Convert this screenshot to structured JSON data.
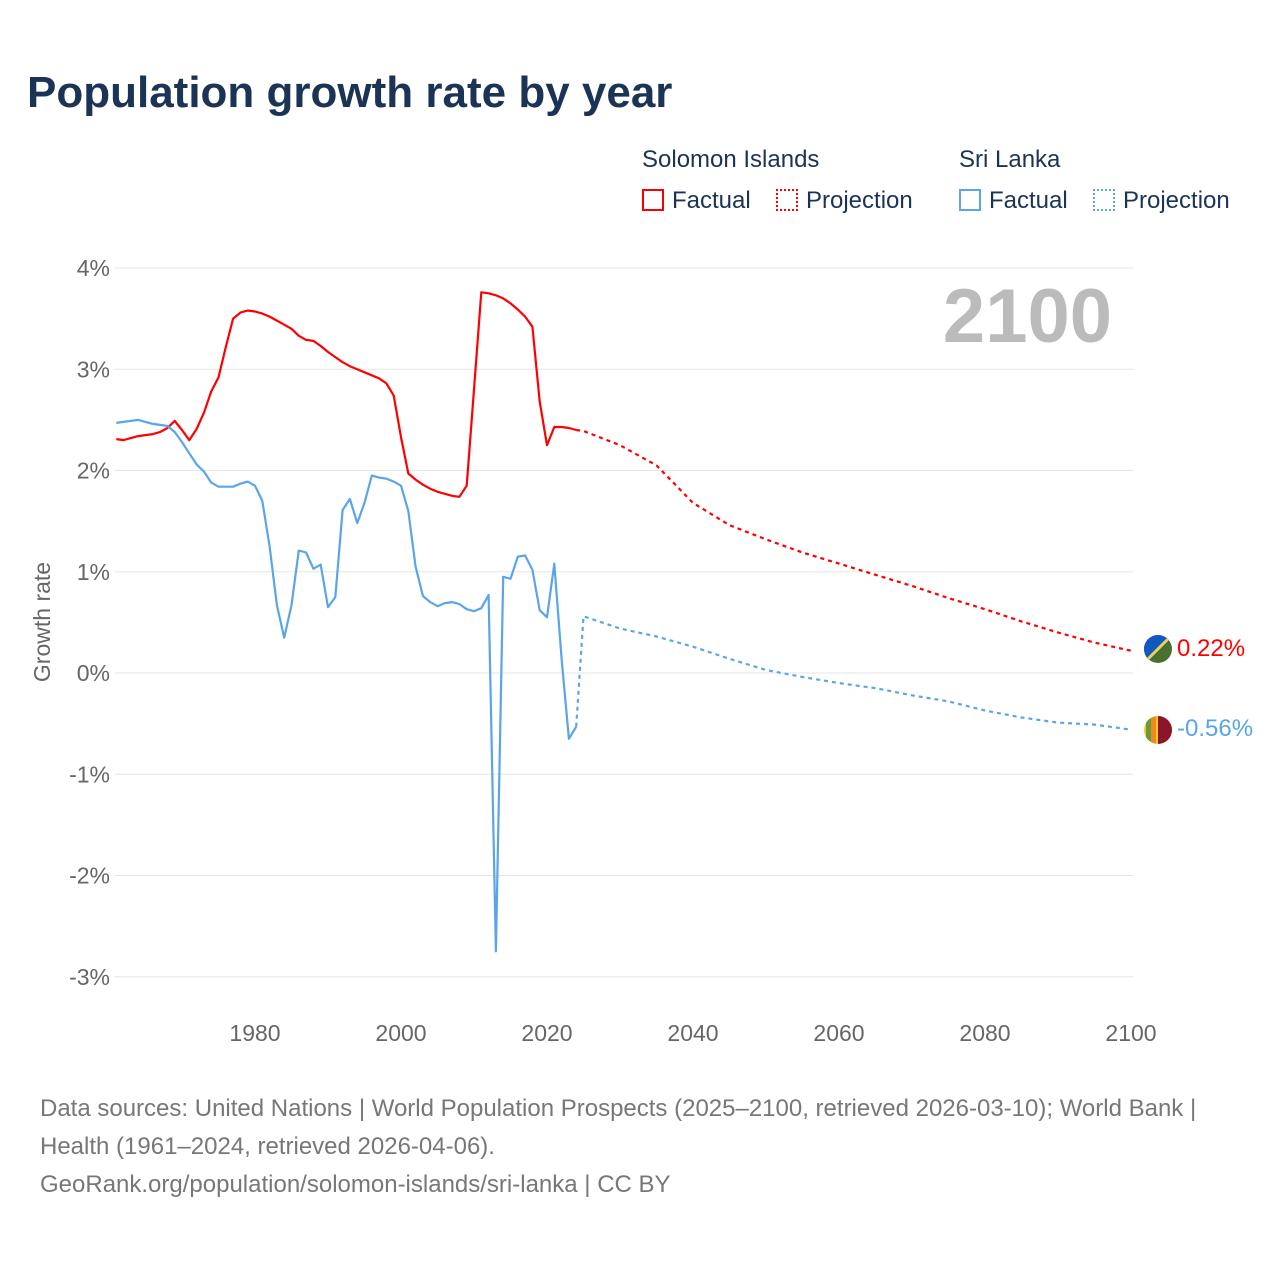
{
  "title": "Population growth rate by year",
  "legend": {
    "groups": [
      {
        "name": "Solomon Islands",
        "factual": "Factual",
        "projection": "Projection",
        "color": "#ff0000"
      },
      {
        "name": "Sri Lanka",
        "factual": "Factual",
        "projection": "Projection",
        "color": "#5aa5ea"
      }
    ]
  },
  "watermark_year": "2100",
  "end_labels": [
    "0.22%",
    "-0.56%"
  ],
  "source": {
    "line1": "Data sources: United Nations | World Population Prospects (2025–2100, retrieved 2026-03-10); World Bank | Health (1961–2024, retrieved 2026-04-06).",
    "line2": "GeoRank.org/population/solomon-islands/sri-lanka | CC BY"
  },
  "chart_data": {
    "type": "line",
    "title": "Population growth rate by year",
    "xlabel": "",
    "ylabel": "Growth rate",
    "xlim": [
      1961,
      2100
    ],
    "ylim": [
      -3,
      4
    ],
    "xticks": [
      "1980",
      "2000",
      "2020",
      "2040",
      "2060",
      "2080",
      "2100"
    ],
    "yticks": [
      "4%",
      "3%",
      "2%",
      "1%",
      "0%",
      "-1%",
      "-2%",
      "-3%"
    ],
    "series": [
      {
        "name": "Solomon Islands Factual",
        "color": "#ff0000",
        "dashed": false,
        "start": 1961,
        "values": [
          2.31,
          2.3,
          2.32,
          2.34,
          2.35,
          2.36,
          2.38,
          2.42,
          2.49,
          2.4,
          2.3,
          2.41,
          2.57,
          2.78,
          2.92,
          3.22,
          3.5,
          3.56,
          3.58,
          3.57,
          3.55,
          3.52,
          3.48,
          3.44,
          3.4,
          3.33,
          3.29,
          3.28,
          3.23,
          3.17,
          3.12,
          3.07,
          3.03,
          3.0,
          2.97,
          2.94,
          2.91,
          2.86,
          2.74,
          2.33,
          1.97,
          1.91,
          1.86,
          1.82,
          1.79,
          1.77,
          1.75,
          1.74,
          1.85,
          2.8,
          3.76,
          3.75,
          3.73,
          3.7,
          3.65,
          3.59,
          3.52,
          3.42,
          2.68,
          2.25,
          2.43,
          2.43,
          2.42,
          2.4
        ]
      },
      {
        "name": "Solomon Islands Projection",
        "color": "#ff0000",
        "dashed": true,
        "x": [
          2024,
          2025,
          2030,
          2035,
          2040,
          2045,
          2050,
          2055,
          2060,
          2065,
          2070,
          2075,
          2080,
          2085,
          2090,
          2095,
          2100
        ],
        "values": [
          2.4,
          2.39,
          2.25,
          2.05,
          1.68,
          1.46,
          1.32,
          1.19,
          1.08,
          0.97,
          0.86,
          0.74,
          0.63,
          0.51,
          0.4,
          0.3,
          0.22
        ]
      },
      {
        "name": "Sri Lanka Factual",
        "color": "#5aa5ea",
        "dashed": false,
        "start": 1961,
        "values": [
          2.47,
          2.48,
          2.49,
          2.5,
          2.48,
          2.46,
          2.45,
          2.44,
          2.38,
          2.28,
          2.17,
          2.06,
          1.99,
          1.88,
          1.84,
          1.84,
          1.84,
          1.87,
          1.89,
          1.85,
          1.7,
          1.25,
          0.67,
          0.35,
          0.67,
          1.21,
          1.19,
          1.03,
          1.07,
          0.65,
          0.75,
          1.61,
          1.72,
          1.48,
          1.68,
          1.95,
          1.93,
          1.92,
          1.89,
          1.85,
          1.6,
          1.05,
          0.76,
          0.7,
          0.66,
          0.69,
          0.7,
          0.68,
          0.63,
          0.61,
          0.64,
          0.77,
          -2.75,
          0.95,
          0.93,
          1.15,
          1.16,
          1.02,
          0.62,
          0.55,
          1.08,
          0.14,
          -0.65,
          -0.53
        ]
      },
      {
        "name": "Sri Lanka Projection",
        "color": "#5aa5ea",
        "dashed": true,
        "x": [
          2024,
          2025,
          2030,
          2035,
          2040,
          2045,
          2050,
          2055,
          2060,
          2065,
          2070,
          2075,
          2080,
          2085,
          2090,
          2095,
          2100
        ],
        "values": [
          -0.53,
          0.56,
          0.44,
          0.36,
          0.26,
          0.14,
          0.03,
          -0.04,
          -0.1,
          -0.15,
          -0.22,
          -0.28,
          -0.37,
          -0.44,
          -0.49,
          -0.51,
          -0.56
        ]
      }
    ]
  }
}
